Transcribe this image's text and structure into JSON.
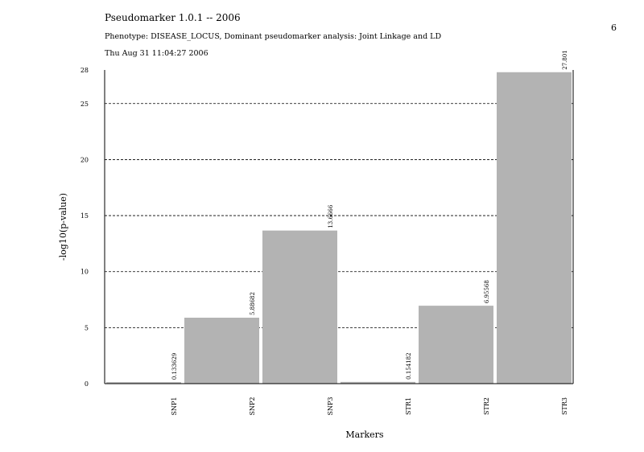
{
  "header": {
    "title": "Pseudomarker 1.0.1 -- 2006",
    "subtitle": "Phenotype: DISEASE_LOCUS, Dominant pseudomarker analysis: Joint Linkage and LD",
    "date": "Thu Aug 31 11:04:27 2006",
    "page_number": "6"
  },
  "chart_data": {
    "type": "bar",
    "title": "Pseudomarker 1.0.1 -- 2006",
    "xlabel": "Markers",
    "ylabel": "-log10(p-value)",
    "categories": [
      "SNP1",
      "SNP2",
      "SNP3",
      "STR1",
      "STR2",
      "STR3"
    ],
    "values": [
      0.133629,
      5.88682,
      13.6666,
      0.154182,
      6.95568,
      27.801
    ],
    "value_labels": [
      "0.133629",
      "5.88682",
      "13.6666",
      "0.154182",
      "6.95568",
      "27.801"
    ],
    "ylim": [
      0,
      28
    ],
    "yticks": [
      0,
      5,
      10,
      15,
      20,
      25,
      28
    ],
    "grid": "horizontal dashed",
    "bar_color": "#b3b3b3"
  }
}
